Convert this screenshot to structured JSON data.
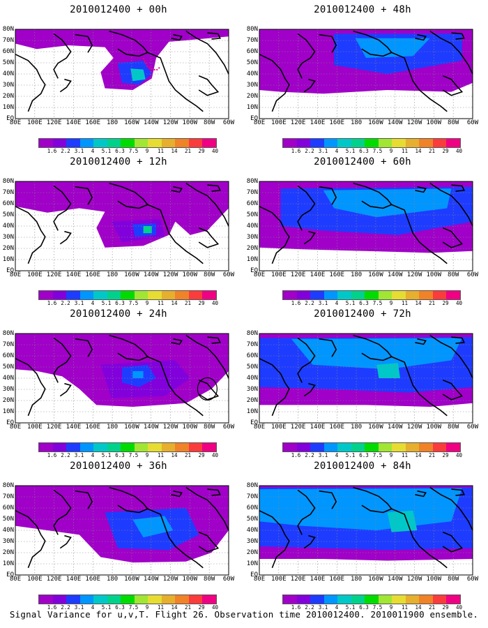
{
  "panels": [
    {
      "title": "2010012400 + 00h",
      "col": 0,
      "row": 0,
      "level": 0
    },
    {
      "title": "2010012400 + 12h",
      "col": 0,
      "row": 1,
      "level": 1
    },
    {
      "title": "2010012400 + 24h",
      "col": 0,
      "row": 2,
      "level": 2
    },
    {
      "title": "2010012400 + 36h",
      "col": 0,
      "row": 3,
      "level": 3
    },
    {
      "title": "2010012400 + 48h",
      "col": 1,
      "row": 0,
      "level": 4
    },
    {
      "title": "2010012400 + 60h",
      "col": 1,
      "row": 1,
      "level": 5
    },
    {
      "title": "2010012400 + 72h",
      "col": 1,
      "row": 2,
      "level": 6
    },
    {
      "title": "2010012400 + 84h",
      "col": 1,
      "row": 3,
      "level": 7
    }
  ],
  "lat_labels": [
    "80N",
    "70N",
    "60N",
    "50N",
    "40N",
    "30N",
    "20N",
    "10N",
    "EQ"
  ],
  "lon_labels": [
    "80E",
    "100E",
    "120E",
    "140E",
    "160E",
    "180",
    "160W",
    "140W",
    "120W",
    "100W",
    "80W",
    "60W"
  ],
  "colorbar": {
    "labels": [
      "1.6",
      "2.2",
      "3.1",
      "4",
      "5.1",
      "6.3",
      "7.5",
      "9",
      "11",
      "14",
      "21",
      "29",
      "40"
    ],
    "colors": [
      "#a000c8",
      "#8200dc",
      "#1e3cff",
      "#0096ff",
      "#00c8c8",
      "#00d28c",
      "#00dc00",
      "#a0e632",
      "#e6dc32",
      "#e6af2d",
      "#f08228",
      "#fa3c3c",
      "#f00082"
    ]
  },
  "footer": "Signal Variance for u,v,T. Flight 26. Observation time 2010012400. 2010011900 ensemble."
}
